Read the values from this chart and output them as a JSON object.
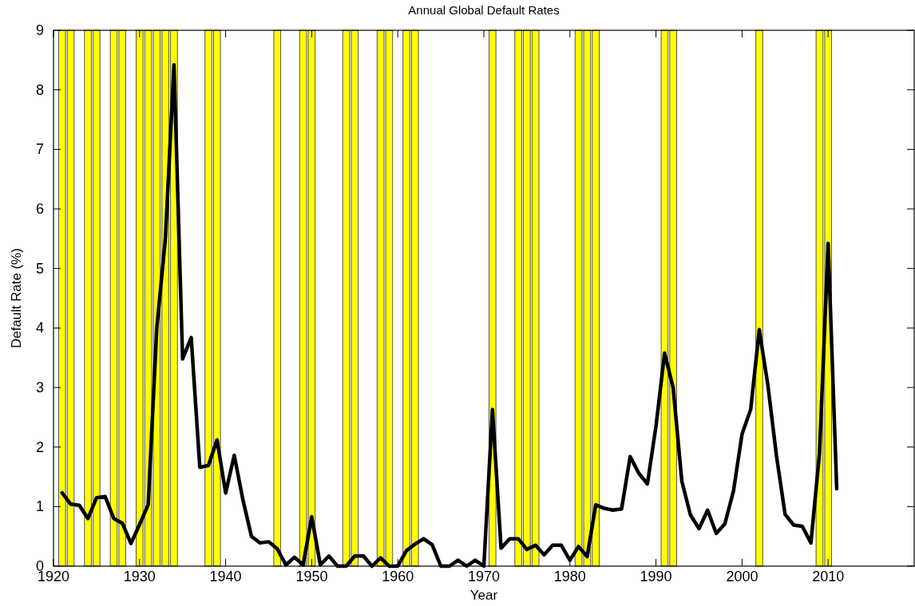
{
  "chart_data": {
    "type": "line",
    "title": "Annual Global Default Rates",
    "xlabel": "Year",
    "ylabel": "Default Rate (%)",
    "x": [
      1921,
      1922,
      1923,
      1924,
      1925,
      1926,
      1927,
      1928,
      1929,
      1930,
      1931,
      1932,
      1933,
      1934,
      1935,
      1936,
      1937,
      1938,
      1939,
      1940,
      1941,
      1942,
      1943,
      1944,
      1945,
      1946,
      1947,
      1948,
      1949,
      1950,
      1951,
      1952,
      1953,
      1954,
      1955,
      1956,
      1957,
      1958,
      1959,
      1960,
      1961,
      1962,
      1963,
      1964,
      1965,
      1966,
      1967,
      1968,
      1969,
      1970,
      1971,
      1972,
      1973,
      1974,
      1975,
      1976,
      1977,
      1978,
      1979,
      1980,
      1981,
      1982,
      1983,
      1984,
      1985,
      1986,
      1987,
      1988,
      1989,
      1990,
      1991,
      1992,
      1993,
      1994,
      1995,
      1996,
      1997,
      1998,
      1999,
      2000,
      2001,
      2002,
      2003,
      2004,
      2005,
      2006,
      2007,
      2008,
      2009,
      2010,
      2011
    ],
    "series": [
      {
        "color": "#000000",
        "values": [
          1.23,
          1.04,
          1.02,
          0.8,
          1.15,
          1.17,
          0.8,
          0.72,
          0.38,
          0.7,
          1.03,
          4.0,
          5.5,
          8.42,
          3.48,
          3.84,
          1.66,
          1.69,
          2.12,
          1.23,
          1.86,
          1.12,
          0.5,
          0.39,
          0.41,
          0.29,
          0.02,
          0.15,
          0.02,
          0.83,
          0.02,
          0.17,
          0,
          0,
          0.17,
          0.17,
          0,
          0.14,
          0,
          0,
          0.26,
          0.37,
          0.46,
          0.36,
          0,
          0,
          0.1,
          0,
          0.1,
          0,
          2.63,
          0.3,
          0.46,
          0.46,
          0.28,
          0.35,
          0.19,
          0.35,
          0.35,
          0.1,
          0.33,
          0.16,
          1.03,
          0.97,
          0.94,
          0.96,
          1.84,
          1.56,
          1.38,
          2.35,
          3.58,
          2.99,
          1.43,
          0.86,
          0.63,
          0.94,
          0.55,
          0.71,
          1.26,
          2.22,
          2.63,
          3.97,
          3.04,
          1.85,
          0.87,
          0.69,
          0.67,
          0.39,
          1.9,
          5.42,
          1.3
        ]
      }
    ],
    "xlim": [
      1920,
      2020
    ],
    "xticks": [
      1920,
      1930,
      1940,
      1950,
      1960,
      1970,
      1980,
      1990,
      2000,
      2010
    ],
    "ylim": [
      0,
      9
    ],
    "yticks": [
      0,
      1,
      2,
      3,
      4,
      5,
      6,
      7,
      8,
      9
    ],
    "grid": false,
    "marker": "none",
    "line_style": "solid",
    "bands": [
      {
        "axis": "x",
        "from": 1920.6,
        "to": 1921.4,
        "color": "#ffff00"
      },
      {
        "axis": "x",
        "from": 1921.6,
        "to": 1922.4,
        "color": "#ffff00"
      },
      {
        "axis": "x",
        "from": 1923.6,
        "to": 1924.4,
        "color": "#ffff00"
      },
      {
        "axis": "x",
        "from": 1924.6,
        "to": 1925.4,
        "color": "#ffff00"
      },
      {
        "axis": "x",
        "from": 1926.6,
        "to": 1927.4,
        "color": "#ffff00"
      },
      {
        "axis": "x",
        "from": 1927.6,
        "to": 1928.4,
        "color": "#ffff00"
      },
      {
        "axis": "x",
        "from": 1929.6,
        "to": 1930.4,
        "color": "#ffff00"
      },
      {
        "axis": "x",
        "from": 1930.6,
        "to": 1931.4,
        "color": "#ffff00"
      },
      {
        "axis": "x",
        "from": 1931.6,
        "to": 1932.4,
        "color": "#ffff00"
      },
      {
        "axis": "x",
        "from": 1932.6,
        "to": 1933.4,
        "color": "#ffff00"
      },
      {
        "axis": "x",
        "from": 1933.6,
        "to": 1934.4,
        "color": "#ffff00"
      },
      {
        "axis": "x",
        "from": 1937.6,
        "to": 1938.4,
        "color": "#ffff00"
      },
      {
        "axis": "x",
        "from": 1938.6,
        "to": 1939.4,
        "color": "#ffff00"
      },
      {
        "axis": "x",
        "from": 1945.6,
        "to": 1946.4,
        "color": "#ffff00"
      },
      {
        "axis": "x",
        "from": 1948.6,
        "to": 1949.4,
        "color": "#ffff00"
      },
      {
        "axis": "x",
        "from": 1949.6,
        "to": 1950.4,
        "color": "#ffff00"
      },
      {
        "axis": "x",
        "from": 1953.6,
        "to": 1954.4,
        "color": "#ffff00"
      },
      {
        "axis": "x",
        "from": 1954.6,
        "to": 1955.4,
        "color": "#ffff00"
      },
      {
        "axis": "x",
        "from": 1957.6,
        "to": 1958.4,
        "color": "#ffff00"
      },
      {
        "axis": "x",
        "from": 1958.6,
        "to": 1959.4,
        "color": "#ffff00"
      },
      {
        "axis": "x",
        "from": 1960.6,
        "to": 1961.4,
        "color": "#ffff00"
      },
      {
        "axis": "x",
        "from": 1961.6,
        "to": 1962.4,
        "color": "#ffff00"
      },
      {
        "axis": "x",
        "from": 1970.6,
        "to": 1971.4,
        "color": "#ffff00"
      },
      {
        "axis": "x",
        "from": 1973.6,
        "to": 1974.4,
        "color": "#ffff00"
      },
      {
        "axis": "x",
        "from": 1974.6,
        "to": 1975.4,
        "color": "#ffff00"
      },
      {
        "axis": "x",
        "from": 1975.6,
        "to": 1976.4,
        "color": "#ffff00"
      },
      {
        "axis": "x",
        "from": 1980.6,
        "to": 1981.4,
        "color": "#ffff00"
      },
      {
        "axis": "x",
        "from": 1981.6,
        "to": 1982.4,
        "color": "#ffff00"
      },
      {
        "axis": "x",
        "from": 1982.6,
        "to": 1983.4,
        "color": "#ffff00"
      },
      {
        "axis": "x",
        "from": 1990.6,
        "to": 1991.4,
        "color": "#ffff00"
      },
      {
        "axis": "x",
        "from": 1991.6,
        "to": 1992.4,
        "color": "#ffff00"
      },
      {
        "axis": "x",
        "from": 2001.6,
        "to": 2002.4,
        "color": "#ffff00"
      },
      {
        "axis": "x",
        "from": 2008.6,
        "to": 2009.4,
        "color": "#ffff00"
      },
      {
        "axis": "x",
        "from": 2009.6,
        "to": 2010.4,
        "color": "#ffff00"
      }
    ]
  }
}
